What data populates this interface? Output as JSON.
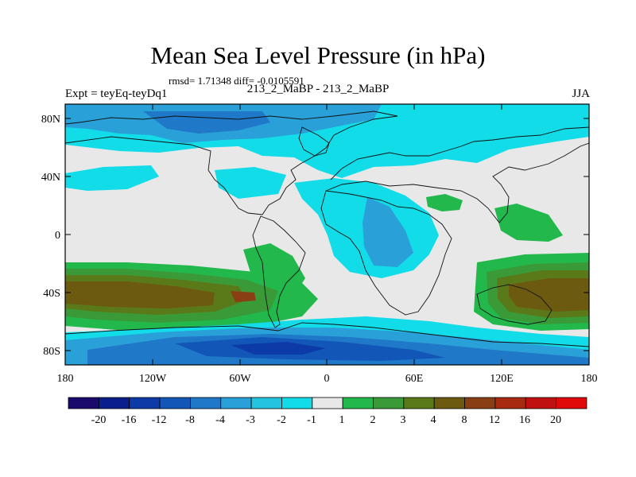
{
  "title": "Mean Sea Level Pressure (in hPa)",
  "stats_line": "rmsd= 1.71348 diff= -0.0105591",
  "experiment": "Expt = teyEq-teyDq1",
  "subtitle": "213_2_MaBP - 213_2_MaBP",
  "season": "JJA",
  "axes": {
    "lat_labels": [
      "80N",
      "40N",
      "0",
      "40S",
      "80S"
    ],
    "lon_labels": [
      "180",
      "120W",
      "60W",
      "0",
      "60E",
      "120E",
      "180"
    ]
  },
  "colorbar": {
    "labels": [
      "-20",
      "-16",
      "-12",
      "-8",
      "-4",
      "-3",
      "-2",
      "-1",
      "1",
      "2",
      "3",
      "4",
      "8",
      "12",
      "16",
      "20"
    ],
    "colors": [
      "#1a0a6e",
      "#0a1f8c",
      "#0c3ba8",
      "#1257b8",
      "#1f78c8",
      "#2aa0d8",
      "#24c4e0",
      "#12dce8",
      "#e8e8e8",
      "#22b84c",
      "#3a9a38",
      "#5a7a1a",
      "#6b5a10",
      "#8a3e14",
      "#a82a10",
      "#c01010",
      "#e00a0a"
    ]
  },
  "field_colors": {
    "neutral": "#e8e8e8",
    "neg1": "#12dce8",
    "neg2": "#2aa0d8",
    "neg3": "#1f78c8",
    "neg4": "#1257b8",
    "neg8": "#0c3ba8",
    "pos1": "#22b84c",
    "pos2": "#3a9a38",
    "pos3": "#5a7a1a",
    "pos4": "#6b5a10",
    "pos8": "#8a3e14"
  }
}
